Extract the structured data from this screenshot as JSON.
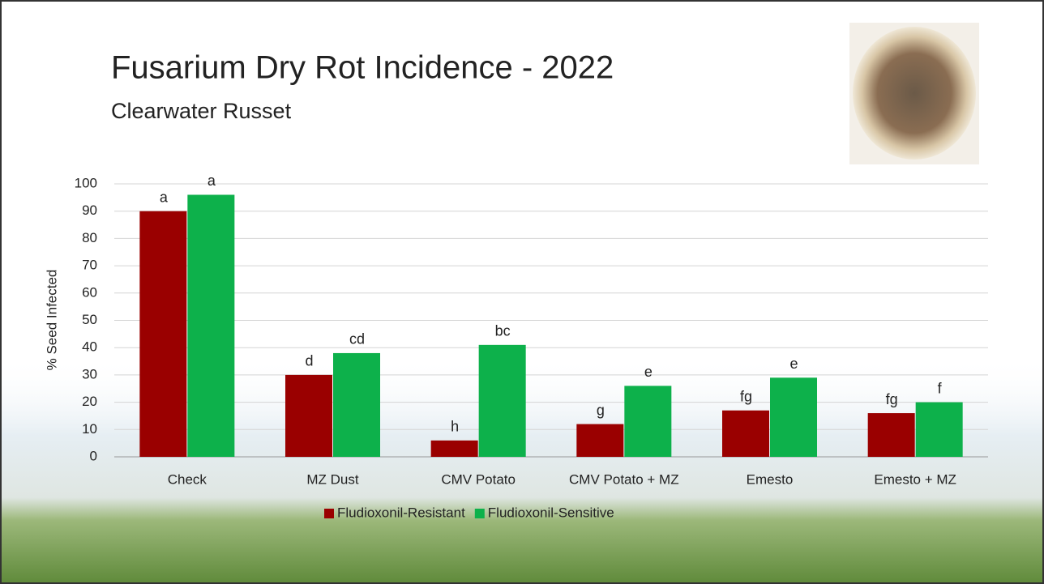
{
  "chart_data": {
    "type": "bar",
    "title": "Fusarium Dry Rot Incidence - 2022",
    "subtitle": "Clearwater Russet",
    "y_label": "% Seed Infected",
    "categories": [
      "Check",
      "MZ Dust",
      "CMV Potato",
      "CMV Potato + MZ",
      "Emesto",
      "Emesto + MZ"
    ],
    "series": [
      {
        "name": "Fludioxonil-Resistant",
        "color": "#9a0000",
        "values": [
          90,
          30,
          6,
          12,
          17,
          16
        ],
        "letters": [
          "a",
          "d",
          "h",
          "g",
          "fg",
          "fg"
        ]
      },
      {
        "name": "Fludioxonil-Sensitive",
        "color": "#0db14b",
        "values": [
          96,
          38,
          41,
          26,
          29,
          20
        ],
        "letters": [
          "a",
          "cd",
          "bc",
          "e",
          "e",
          "f"
        ]
      }
    ],
    "ylim": [
      0,
      100
    ],
    "yticks": [
      0,
      10,
      20,
      30,
      40,
      50,
      60,
      70,
      80,
      90,
      100
    ],
    "grid": true,
    "legend": "bottom"
  }
}
